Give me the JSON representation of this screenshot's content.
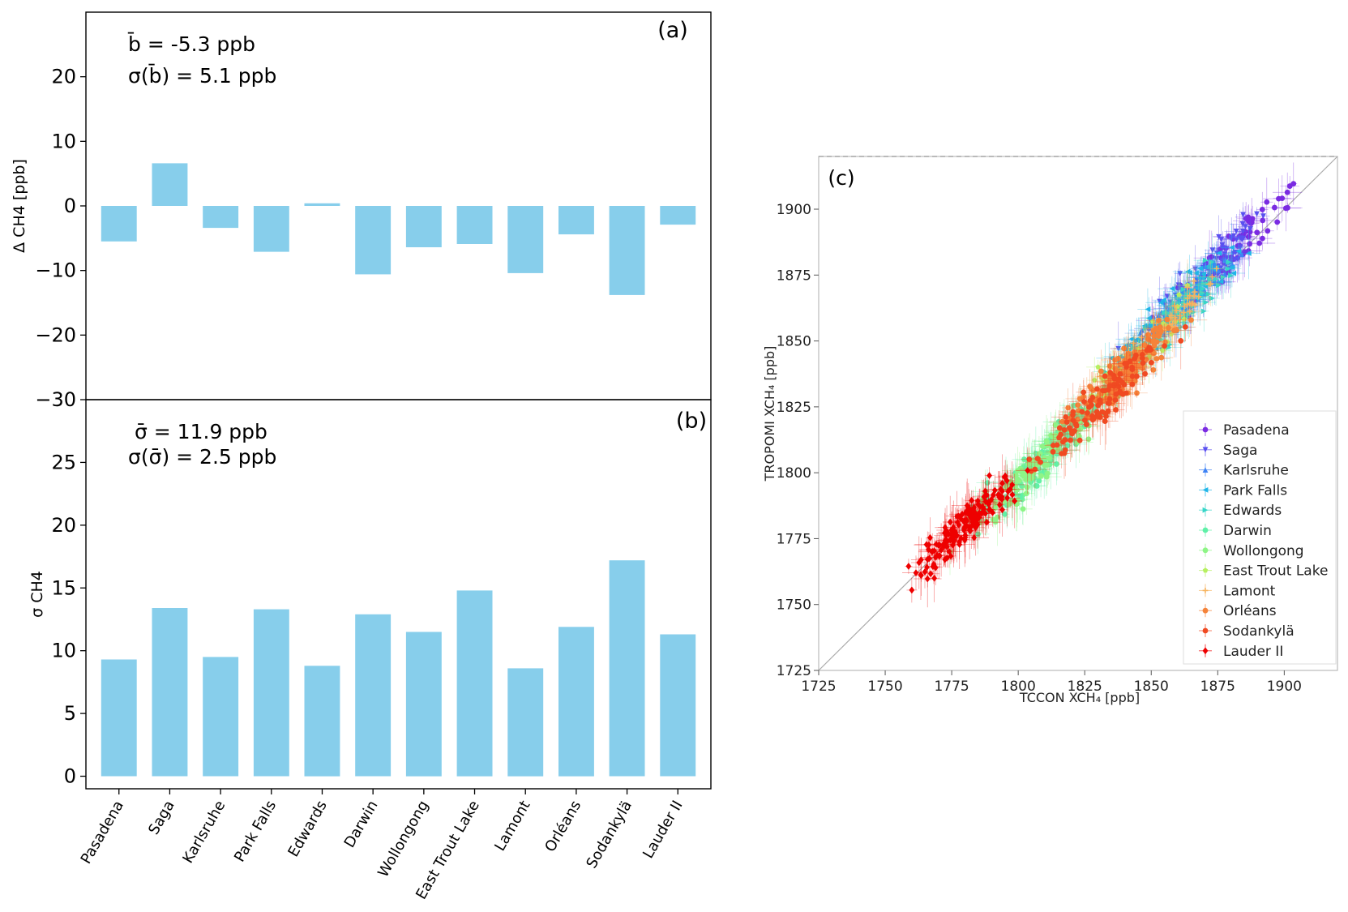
{
  "chart_data": [
    {
      "type": "bar",
      "panel_label": "(a)",
      "ylabel": "Δ CH4 [ppb]",
      "ylim": [
        -30,
        30
      ],
      "yticks": [
        -30,
        -20,
        -10,
        0,
        10,
        20
      ],
      "bar_color": "#87CEEB",
      "annotations": [
        "b̄ = -5.3 ppb",
        "σ(b̄) = 5.1 ppb"
      ],
      "categories": [
        "Pasadena",
        "Saga",
        "Karlsruhe",
        "Park Falls",
        "Edwards",
        "Darwin",
        "Wollongong",
        "East Trout Lake",
        "Lamont",
        "Orléans",
        "Sodankylä",
        "Lauder II"
      ],
      "values": [
        -5.5,
        6.6,
        -3.4,
        -7.1,
        0.4,
        -10.6,
        -6.4,
        -5.9,
        -10.4,
        -4.4,
        -13.8,
        -2.9
      ]
    },
    {
      "type": "bar",
      "panel_label": "(b)",
      "ylabel": "σ CH4",
      "ylim": [
        -1,
        30
      ],
      "yticks": [
        0,
        5,
        10,
        15,
        20,
        25
      ],
      "bar_color": "#87CEEB",
      "annotations": [
        "σ̄ = 11.9 ppb",
        "σ(σ̄) = 2.5 ppb"
      ],
      "categories": [
        "Pasadena",
        "Saga",
        "Karlsruhe",
        "Park Falls",
        "Edwards",
        "Darwin",
        "Wollongong",
        "East Trout Lake",
        "Lamont",
        "Orléans",
        "Sodankylä",
        "Lauder II"
      ],
      "values": [
        9.3,
        13.4,
        9.5,
        13.3,
        8.8,
        12.9,
        11.5,
        14.8,
        8.6,
        11.9,
        17.2,
        11.3
      ]
    },
    {
      "type": "scatter",
      "panel_label": "(c)",
      "xlabel": "TCCON  XCH₄ [ppb]",
      "ylabel": "TROPOMI XCH₄ [ppb]",
      "xlim": [
        1725,
        1920
      ],
      "ylim": [
        1725,
        1920
      ],
      "xticks": [
        1725,
        1750,
        1775,
        1800,
        1825,
        1850,
        1875,
        1900
      ],
      "yticks": [
        1725,
        1750,
        1775,
        1800,
        1825,
        1850,
        1875,
        1900
      ],
      "grid": false,
      "one_to_one_line": true,
      "legend_position": "lower right",
      "series": [
        {
          "name": "Pasadena",
          "color": "#7a2be2",
          "marker": "circle",
          "center": [
            1878,
            1882
          ],
          "spread": 18,
          "count": 90
        },
        {
          "name": "Saga",
          "color": "#5a50f0",
          "marker": "triangle-down",
          "center": [
            1872,
            1878
          ],
          "spread": 18,
          "count": 70
        },
        {
          "name": "Karlsruhe",
          "color": "#3f83f5",
          "marker": "triangle-up",
          "center": [
            1862,
            1864
          ],
          "spread": 15,
          "count": 70
        },
        {
          "name": "Park Falls",
          "color": "#1fb5e8",
          "marker": "triangle-left",
          "center": [
            1858,
            1862
          ],
          "spread": 16,
          "count": 90
        },
        {
          "name": "Edwards",
          "color": "#37d6c8",
          "marker": "triangle-right",
          "center": [
            1858,
            1857
          ],
          "spread": 16,
          "count": 70
        },
        {
          "name": "Darwin",
          "color": "#5ff0a8",
          "marker": "circle",
          "center": [
            1812,
            1808
          ],
          "spread": 18,
          "count": 140
        },
        {
          "name": "Wollongong",
          "color": "#8ef586",
          "marker": "circle",
          "center": [
            1805,
            1800
          ],
          "spread": 16,
          "count": 110
        },
        {
          "name": "East Trout Lake",
          "color": "#b6f060",
          "marker": "pentagon",
          "center": [
            1845,
            1845
          ],
          "spread": 14,
          "count": 50
        },
        {
          "name": "Lamont",
          "color": "#f7b460",
          "marker": "plus",
          "center": [
            1855,
            1855
          ],
          "spread": 15,
          "count": 60
        },
        {
          "name": "Orléans",
          "color": "#f5833a",
          "marker": "circle",
          "center": [
            1840,
            1838
          ],
          "spread": 14,
          "count": 130
        },
        {
          "name": "Sodankylä",
          "color": "#f04a22",
          "marker": "circle",
          "center": [
            1830,
            1826
          ],
          "spread": 16,
          "count": 110
        },
        {
          "name": "Lauder II",
          "color": "#ee0000",
          "marker": "diamond",
          "center": [
            1780,
            1780
          ],
          "spread": 13,
          "count": 170
        }
      ]
    }
  ]
}
